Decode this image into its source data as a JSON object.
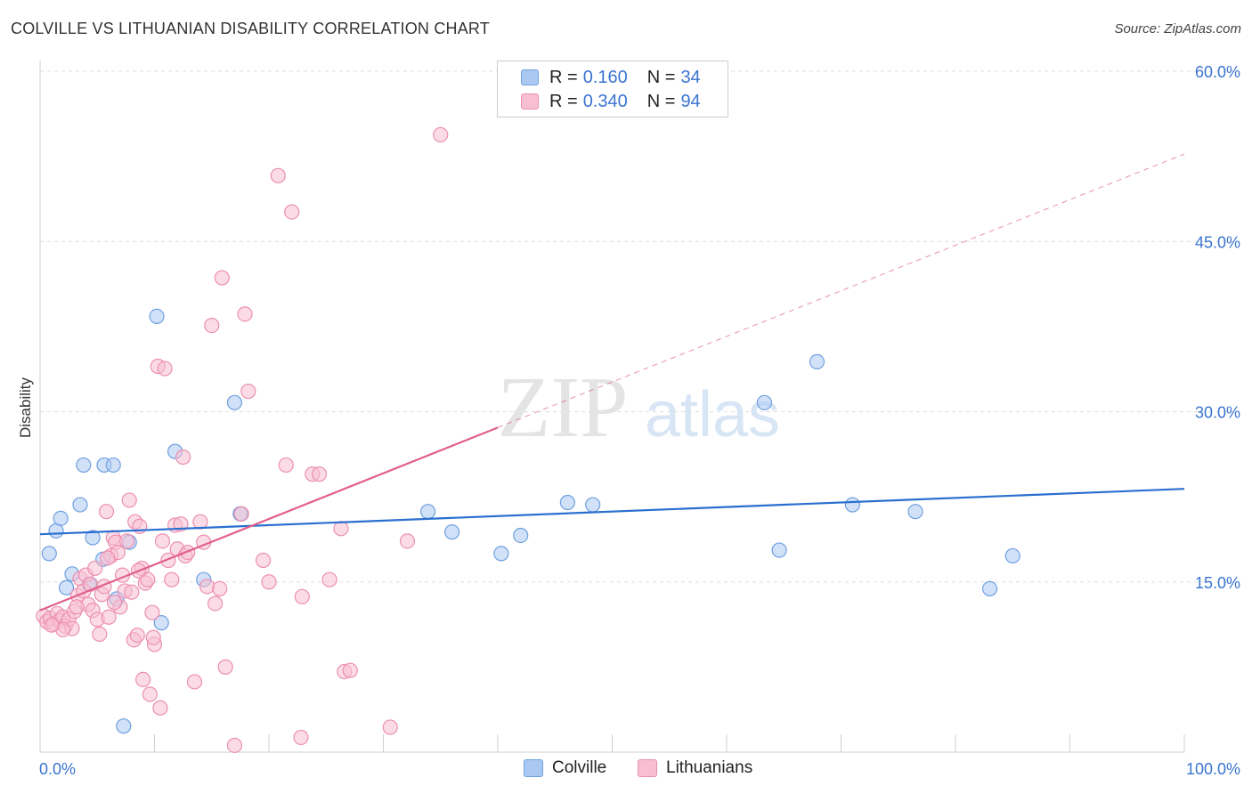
{
  "header": {
    "title": "COLVILLE VS LITHUANIAN DISABILITY CORRELATION CHART",
    "source": "Source: ZipAtlas.com"
  },
  "watermark": {
    "zip": "ZIP",
    "atlas": "atlas"
  },
  "legend": {
    "rows": [
      {
        "r_label": "R = ",
        "r_value": "0.160",
        "n_label": "N = ",
        "n_value": "34",
        "color": "#aac8f2",
        "border": "#6fa0e0"
      },
      {
        "r_label": "R = ",
        "r_value": "0.340",
        "n_label": "N = ",
        "n_value": "94",
        "color": "#f8bfd2",
        "border": "#ec8fb0"
      }
    ]
  },
  "bottom_legend": {
    "colville": "Colville",
    "lithuanians": "Lithuanians"
  },
  "chart_data": {
    "type": "scatter",
    "title": "COLVILLE VS LITHUANIAN DISABILITY CORRELATION CHART",
    "xlabel": "",
    "ylabel": "Disability",
    "xlim": [
      0,
      100
    ],
    "ylim": [
      0,
      60
    ],
    "x_tick_labels": [
      "0.0%",
      "100.0%"
    ],
    "y_tick_labels": [
      "15.0%",
      "30.0%",
      "45.0%",
      "60.0%"
    ],
    "y_ticks": [
      15,
      30,
      45,
      60
    ],
    "grid": true,
    "legend_position": "top-center",
    "series": [
      {
        "name": "Colville",
        "color": "#6fa0e0",
        "fill": "#aac8f2",
        "trend_color": "#2a6fd0",
        "trend": {
          "x0": 0,
          "y0": 19.2,
          "x1": 100,
          "y1": 23.2
        },
        "points": [
          [
            0.8,
            17.5
          ],
          [
            1.4,
            19.5
          ],
          [
            1.8,
            20.6
          ],
          [
            2.3,
            14.5
          ],
          [
            2.8,
            15.7
          ],
          [
            3.5,
            21.8
          ],
          [
            3.8,
            25.3
          ],
          [
            4.6,
            18.9
          ],
          [
            5.5,
            17.0
          ],
          [
            5.6,
            25.3
          ],
          [
            6.4,
            25.3
          ],
          [
            6.7,
            13.5
          ],
          [
            7.8,
            18.5
          ],
          [
            10.2,
            38.4
          ],
          [
            10.6,
            11.4
          ],
          [
            11.8,
            26.5
          ],
          [
            14.3,
            15.2
          ],
          [
            17.0,
            30.8
          ],
          [
            17.5,
            21.0
          ],
          [
            33.9,
            21.2
          ],
          [
            36.0,
            19.4
          ],
          [
            40.3,
            17.5
          ],
          [
            42.0,
            19.1
          ],
          [
            46.1,
            22.0
          ],
          [
            48.3,
            21.8
          ],
          [
            63.3,
            30.8
          ],
          [
            64.6,
            17.8
          ],
          [
            67.9,
            34.4
          ],
          [
            71.0,
            21.8
          ],
          [
            76.5,
            21.2
          ],
          [
            83.0,
            14.4
          ],
          [
            85.0,
            17.3
          ],
          [
            7.3,
            2.3
          ],
          [
            4.3,
            14.8
          ]
        ]
      },
      {
        "name": "Lithuanians",
        "color": "#ec8fb0",
        "fill": "#f8bfd2",
        "trend_color": "#e0608c",
        "trend": {
          "x0": 0,
          "y0": 12.5,
          "x1": 40,
          "y1": 28.6
        },
        "trend_extension": {
          "x0": 40,
          "y0": 28.6,
          "x1": 100,
          "y1": 52.7
        },
        "points": [
          [
            0.3,
            12.0
          ],
          [
            0.6,
            11.5
          ],
          [
            0.9,
            11.8
          ],
          [
            1.2,
            11.3
          ],
          [
            1.5,
            12.2
          ],
          [
            1.7,
            11.6
          ],
          [
            2.0,
            11.9
          ],
          [
            2.2,
            11.1
          ],
          [
            2.5,
            11.7
          ],
          [
            2.8,
            10.9
          ],
          [
            3.0,
            12.4
          ],
          [
            3.3,
            13.8
          ],
          [
            3.5,
            15.3
          ],
          [
            3.8,
            14.2
          ],
          [
            4.0,
            15.6
          ],
          [
            4.2,
            13.0
          ],
          [
            4.4,
            14.8
          ],
          [
            4.6,
            12.5
          ],
          [
            4.8,
            16.2
          ],
          [
            5.0,
            11.7
          ],
          [
            5.2,
            10.4
          ],
          [
            5.4,
            13.9
          ],
          [
            5.6,
            14.6
          ],
          [
            5.8,
            21.2
          ],
          [
            6.0,
            11.9
          ],
          [
            6.2,
            17.3
          ],
          [
            6.4,
            18.9
          ],
          [
            6.6,
            18.5
          ],
          [
            6.8,
            17.6
          ],
          [
            7.0,
            12.8
          ],
          [
            7.2,
            15.6
          ],
          [
            7.4,
            14.2
          ],
          [
            7.6,
            18.6
          ],
          [
            7.8,
            22.2
          ],
          [
            8.0,
            14.1
          ],
          [
            8.2,
            9.9
          ],
          [
            8.3,
            20.3
          ],
          [
            8.5,
            10.3
          ],
          [
            8.7,
            19.9
          ],
          [
            8.9,
            16.2
          ],
          [
            9.0,
            6.4
          ],
          [
            9.2,
            14.9
          ],
          [
            9.4,
            15.2
          ],
          [
            9.6,
            5.1
          ],
          [
            9.8,
            12.3
          ],
          [
            10.0,
            9.5
          ],
          [
            10.3,
            34.0
          ],
          [
            10.5,
            3.9
          ],
          [
            10.7,
            18.6
          ],
          [
            10.9,
            33.8
          ],
          [
            11.2,
            16.9
          ],
          [
            11.5,
            15.2
          ],
          [
            11.8,
            20.0
          ],
          [
            12.0,
            17.9
          ],
          [
            12.3,
            20.1
          ],
          [
            12.5,
            26.0
          ],
          [
            12.7,
            17.3
          ],
          [
            12.9,
            17.6
          ],
          [
            13.5,
            6.2
          ],
          [
            14.0,
            20.3
          ],
          [
            14.3,
            18.5
          ],
          [
            14.6,
            14.6
          ],
          [
            15.0,
            37.6
          ],
          [
            15.3,
            13.1
          ],
          [
            15.7,
            14.4
          ],
          [
            15.9,
            41.8
          ],
          [
            16.2,
            7.5
          ],
          [
            17.0,
            0.6
          ],
          [
            17.6,
            21.0
          ],
          [
            17.9,
            38.6
          ],
          [
            18.2,
            31.8
          ],
          [
            19.5,
            16.9
          ],
          [
            20.0,
            15.0
          ],
          [
            20.8,
            50.8
          ],
          [
            21.5,
            25.3
          ],
          [
            22.0,
            47.6
          ],
          [
            22.8,
            1.3
          ],
          [
            22.9,
            13.7
          ],
          [
            23.8,
            24.5
          ],
          [
            24.4,
            24.5
          ],
          [
            25.3,
            15.2
          ],
          [
            26.3,
            19.7
          ],
          [
            26.6,
            7.1
          ],
          [
            27.1,
            7.2
          ],
          [
            30.6,
            2.2
          ],
          [
            32.1,
            18.6
          ],
          [
            35.0,
            54.4
          ],
          [
            2.0,
            10.8
          ],
          [
            1.0,
            11.2
          ],
          [
            6.5,
            13.2
          ],
          [
            3.2,
            12.8
          ],
          [
            9.9,
            10.1
          ],
          [
            8.6,
            16.0
          ],
          [
            5.9,
            17.1
          ]
        ]
      }
    ]
  }
}
